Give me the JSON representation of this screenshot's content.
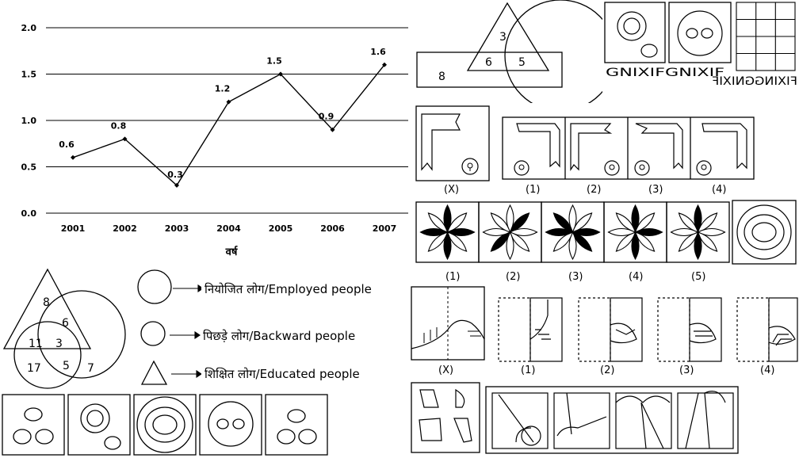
{
  "chart_data": {
    "type": "line",
    "x": [
      "2001",
      "2002",
      "2003",
      "2004",
      "2005",
      "2006",
      "2007"
    ],
    "values": [
      0.6,
      0.8,
      0.3,
      1.2,
      1.5,
      0.9,
      1.6
    ],
    "value_labels": [
      "0.6",
      "0.8",
      "0.3",
      "1.2",
      "1.5",
      "0.9",
      "1.6"
    ],
    "yticks": [
      "0.0",
      "0.5",
      "1.0",
      "1.5",
      "2.0"
    ],
    "ylim": [
      0,
      2.0
    ],
    "xlabel": "वर्ष",
    "ylabel": "",
    "title": "",
    "grid": "horizontal"
  },
  "venn_top": {
    "n_top": "3",
    "n_mid_left": "6",
    "n_mid_right": "5",
    "n_rect": "8"
  },
  "venn_bottom": {
    "n_top": "8",
    "n_upper_right": "6",
    "n_left": "11",
    "n_center": "3",
    "n_lower_mid": "5",
    "n_right": "7",
    "n_lower_left": "17"
  },
  "legend": [
    {
      "shape": "large-circle",
      "label": "नियोजित लोग/Employed people"
    },
    {
      "shape": "small-circle",
      "label": "पिछड़े लोग/Backward people"
    },
    {
      "shape": "triangle",
      "label": "शिक्षित लोग/Educated people"
    }
  ],
  "mirror_text": {
    "word1": "GNIXIFGNIXIF",
    "word2": "FIXINGGNIXIF"
  },
  "fig_labels_row1": [
    "(X)",
    "(1)",
    "(2)",
    "(3)",
    "(4)"
  ],
  "fig_labels_row2": [
    "(1)",
    "(2)",
    "(3)",
    "(4)",
    "(5)"
  ],
  "fig_labels_row3": [
    "(X)",
    "(1)",
    "(2)",
    "(3)",
    "(4)"
  ]
}
